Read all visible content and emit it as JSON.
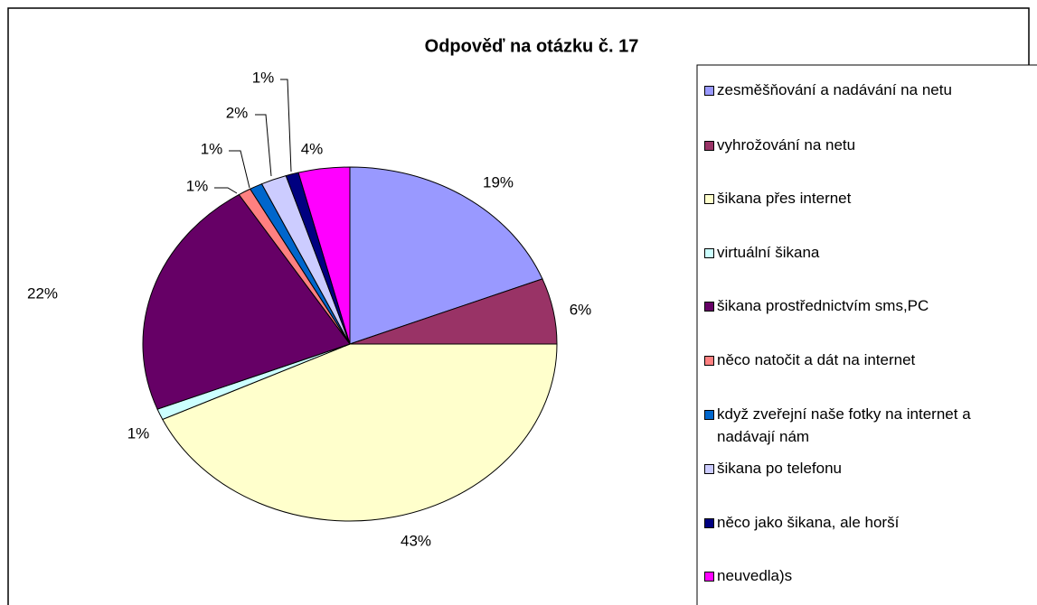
{
  "chart_data": {
    "type": "pie",
    "title": "Odpověď na otázku č. 17",
    "categories": [
      "zesměšňování a nadávání na netu",
      "vyhrožování na netu",
      "šikana přes internet",
      "virtuální šikana",
      "šikana prostřednictvím sms,PC",
      "něco natočit a dát na internet",
      "když zveřejní naše fotky na internet a nadávají nám",
      "šikana po telefonu",
      "něco jako šikana, ale horší",
      "neuvedla)s"
    ],
    "values": [
      19,
      6,
      43,
      1,
      22,
      1,
      1,
      2,
      1,
      4
    ],
    "value_labels": [
      "19%",
      "6%",
      "43%",
      "1%",
      "22%",
      "1%",
      "1%",
      "2%",
      "1%",
      "4%"
    ],
    "colors": [
      "#9999ff",
      "#993366",
      "#ffffcc",
      "#ccffff",
      "#660066",
      "#ff8080",
      "#0066cc",
      "#ccccff",
      "#000080",
      "#ff00ff"
    ],
    "legend": "right"
  }
}
